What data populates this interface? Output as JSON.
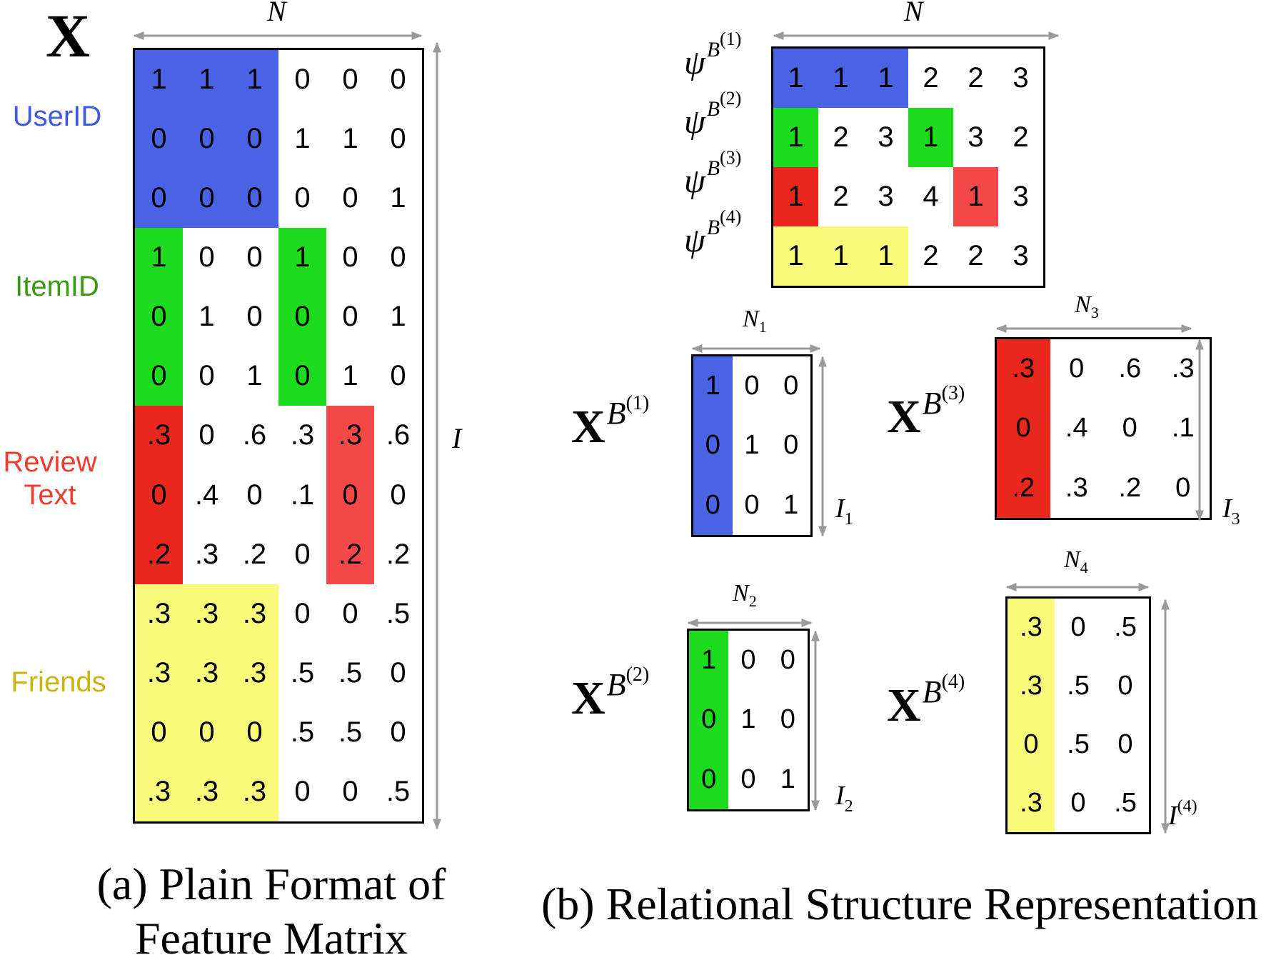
{
  "colors": {
    "blue": "#4a63e4",
    "green": "#1ddc1d",
    "red": "#e8281c",
    "light_red": "#f24848",
    "yellow": "#fafa7a",
    "arrow": "#9a9a9a",
    "label_blue": "#3d5ae0",
    "label_green": "#3a9a14",
    "label_red": "#f03c2e",
    "label_yellow": "#c9b411"
  },
  "panel_a": {
    "title": "X",
    "n_label": "N",
    "i_label": "I",
    "caption": "(a) Plain Format of Feature Matrix",
    "groups": [
      {
        "label": "UserID",
        "color": "label_blue",
        "rows": [
          0,
          2
        ]
      },
      {
        "label": "ItemID",
        "color": "label_green",
        "rows": [
          3,
          5
        ]
      },
      {
        "label": "Review Text",
        "color": "label_red",
        "rows": [
          6,
          8
        ]
      },
      {
        "label": "Friends",
        "color": "label_yellow",
        "rows": [
          9,
          12
        ]
      }
    ],
    "matrix": [
      [
        "1",
        "1",
        "1",
        "0",
        "0",
        "0"
      ],
      [
        "0",
        "0",
        "0",
        "1",
        "1",
        "0"
      ],
      [
        "0",
        "0",
        "0",
        "0",
        "0",
        "1"
      ],
      [
        "1",
        "0",
        "0",
        "1",
        "0",
        "0"
      ],
      [
        "0",
        "1",
        "0",
        "0",
        "0",
        "1"
      ],
      [
        "0",
        "0",
        "1",
        "0",
        "1",
        "0"
      ],
      [
        ".3",
        "0",
        ".6",
        ".3",
        ".3",
        ".6"
      ],
      [
        "0",
        ".4",
        "0",
        ".1",
        "0",
        "0"
      ],
      [
        ".2",
        ".3",
        ".2",
        "0",
        ".2",
        ".2"
      ],
      [
        ".3",
        ".3",
        ".3",
        "0",
        "0",
        ".5"
      ],
      [
        ".3",
        ".3",
        ".3",
        ".5",
        ".5",
        "0"
      ],
      [
        "0",
        "0",
        "0",
        ".5",
        ".5",
        "0"
      ],
      [
        ".3",
        ".3",
        ".3",
        "0",
        "0",
        ".5"
      ]
    ],
    "highlights": [
      {
        "r0": 0,
        "r1": 2,
        "c0": 0,
        "c1": 2,
        "color": "blue"
      },
      {
        "r0": 3,
        "r1": 5,
        "c0": 0,
        "c1": 0,
        "color": "green"
      },
      {
        "r0": 3,
        "r1": 5,
        "c0": 3,
        "c1": 3,
        "color": "green"
      },
      {
        "r0": 6,
        "r1": 8,
        "c0": 0,
        "c1": 0,
        "color": "red"
      },
      {
        "r0": 6,
        "r1": 8,
        "c0": 4,
        "c1": 4,
        "color": "light_red"
      },
      {
        "r0": 9,
        "r1": 12,
        "c0": 0,
        "c1": 2,
        "color": "yellow"
      }
    ]
  },
  "panel_b": {
    "caption": "(b) Relational Structure Representation",
    "psi": {
      "n_label": "N",
      "row_labels": [
        "ψ",
        "ψ",
        "ψ",
        "ψ"
      ],
      "row_label_base": "B",
      "row_label_supers": [
        "(1)",
        "(2)",
        "(3)",
        "(4)"
      ],
      "matrix": [
        [
          "1",
          "1",
          "1",
          "2",
          "2",
          "3"
        ],
        [
          "1",
          "2",
          "3",
          "1",
          "3",
          "2"
        ],
        [
          "1",
          "2",
          "3",
          "4",
          "1",
          "3"
        ],
        [
          "1",
          "1",
          "1",
          "2",
          "2",
          "3"
        ]
      ],
      "highlights": [
        {
          "r0": 0,
          "r1": 0,
          "c0": 0,
          "c1": 2,
          "color": "blue"
        },
        {
          "r0": 1,
          "r1": 1,
          "c0": 0,
          "c1": 0,
          "color": "green"
        },
        {
          "r0": 1,
          "r1": 1,
          "c0": 3,
          "c1": 3,
          "color": "green"
        },
        {
          "r0": 2,
          "r1": 2,
          "c0": 0,
          "c1": 0,
          "color": "red"
        },
        {
          "r0": 2,
          "r1": 2,
          "c0": 4,
          "c1": 4,
          "color": "light_red"
        },
        {
          "r0": 3,
          "r1": 3,
          "c0": 0,
          "c1": 2,
          "color": "yellow"
        }
      ]
    },
    "blocks": [
      {
        "name": "block-1",
        "label": "X",
        "label_base": "B",
        "label_super": "(1)",
        "n_label": "N",
        "n_sub": "1",
        "i_label": "I",
        "i_sub": "1",
        "i_super": "",
        "matrix": [
          [
            "1",
            "0",
            "0"
          ],
          [
            "0",
            "1",
            "0"
          ],
          [
            "0",
            "0",
            "1"
          ]
        ],
        "highlights": [
          {
            "r0": 0,
            "r1": 2,
            "c0": 0,
            "c1": 0,
            "color": "blue"
          }
        ]
      },
      {
        "name": "block-2",
        "label": "X",
        "label_base": "B",
        "label_super": "(2)",
        "n_label": "N",
        "n_sub": "2",
        "i_label": "I",
        "i_sub": "2",
        "i_super": "",
        "matrix": [
          [
            "1",
            "0",
            "0"
          ],
          [
            "0",
            "1",
            "0"
          ],
          [
            "0",
            "0",
            "1"
          ]
        ],
        "highlights": [
          {
            "r0": 0,
            "r1": 2,
            "c0": 0,
            "c1": 0,
            "color": "green"
          }
        ]
      },
      {
        "name": "block-3",
        "label": "X",
        "label_base": "B",
        "label_super": "(3)",
        "n_label": "N",
        "n_sub": "3",
        "i_label": "I",
        "i_sub": "3",
        "i_super": "",
        "matrix": [
          [
            ".3",
            "0",
            ".6",
            ".3"
          ],
          [
            "0",
            ".4",
            "0",
            ".1"
          ],
          [
            ".2",
            ".3",
            ".2",
            "0"
          ]
        ],
        "highlights": [
          {
            "r0": 0,
            "r1": 2,
            "c0": 0,
            "c1": 0,
            "color": "red"
          }
        ]
      },
      {
        "name": "block-4",
        "label": "X",
        "label_base": "B",
        "label_super": "(4)",
        "n_label": "N",
        "n_sub": "4",
        "i_label": "I",
        "i_sub": "",
        "i_super": "(4)",
        "matrix": [
          [
            ".3",
            "0",
            ".5"
          ],
          [
            ".3",
            ".5",
            "0"
          ],
          [
            "0",
            ".5",
            "0"
          ],
          [
            ".3",
            "0",
            ".5"
          ]
        ],
        "highlights": [
          {
            "r0": 0,
            "r1": 3,
            "c0": 0,
            "c1": 0,
            "color": "yellow"
          }
        ]
      }
    ]
  }
}
